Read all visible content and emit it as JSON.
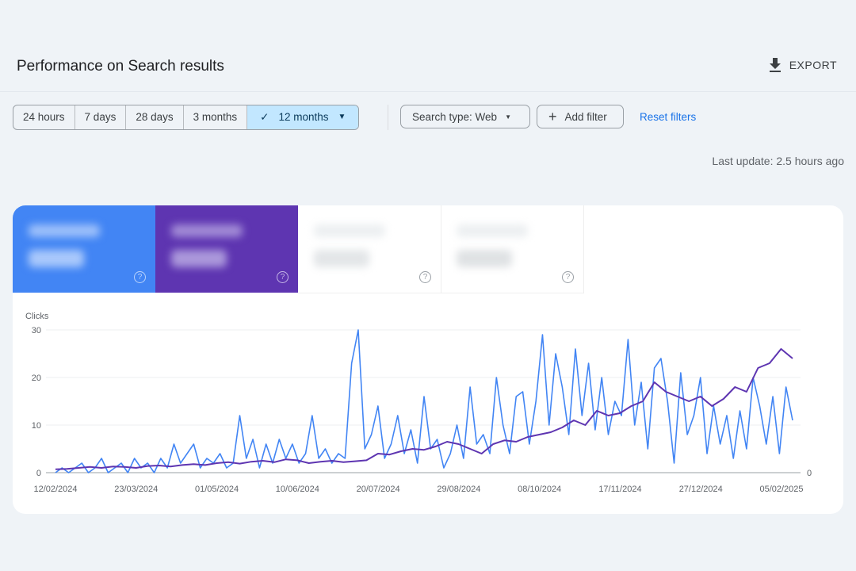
{
  "header": {
    "title": "Performance on Search results",
    "export_label": "EXPORT",
    "export_icon": "download-icon"
  },
  "date_range": {
    "options": [
      "24 hours",
      "7 days",
      "28 days",
      "3 months",
      "12 months"
    ],
    "selected": "12 months"
  },
  "filters": {
    "search_type": "Search type: Web",
    "add_filter": "Add filter",
    "reset": "Reset filters"
  },
  "last_update": "Last update: 2.5 hours ago",
  "metric_tiles": [
    {
      "color": "#4285f4",
      "blurred": true
    },
    {
      "color": "#5e35b1",
      "blurred": true
    },
    {
      "color": "#ffffff",
      "blurred": true
    },
    {
      "color": "#ffffff",
      "blurred": true
    }
  ],
  "chart_data": {
    "type": "line",
    "ylabel": "Clicks",
    "ylim": [
      0,
      30
    ],
    "yticks": [
      "0",
      "10",
      "20",
      "30"
    ],
    "y2ticks": [
      "0"
    ],
    "xlim": [
      "12/02/2024",
      "10/02/2025"
    ],
    "xticks": [
      "12/02/2024",
      "23/03/2024",
      "01/05/2024",
      "10/06/2024",
      "20/07/2024",
      "29/08/2024",
      "08/10/2024",
      "17/11/2024",
      "27/12/2024",
      "05/02/2025"
    ],
    "grid": true,
    "series": [
      {
        "color": "#4285f4",
        "axis": "left",
        "values": [
          0,
          1,
          0,
          1,
          2,
          0,
          1,
          3,
          0,
          1,
          2,
          0,
          3,
          1,
          2,
          0,
          3,
          1,
          6,
          2,
          4,
          6,
          1,
          3,
          2,
          4,
          1,
          2,
          12,
          3,
          7,
          1,
          6,
          2,
          7,
          3,
          6,
          2,
          4,
          12,
          3,
          5,
          2,
          4,
          3,
          23,
          30,
          5,
          8,
          14,
          3,
          6,
          12,
          4,
          9,
          2,
          16,
          5,
          7,
          1,
          4,
          10,
          3,
          18,
          6,
          8,
          4,
          20,
          10,
          4,
          16,
          17,
          6,
          15,
          29,
          10,
          25,
          18,
          8,
          26,
          12,
          23,
          9,
          20,
          8,
          15,
          12,
          28,
          10,
          19,
          5,
          22,
          24,
          15,
          2,
          21,
          8,
          12,
          20,
          4,
          14,
          6,
          12,
          3,
          13,
          5,
          20,
          14,
          6,
          16,
          4,
          18,
          11
        ]
      },
      {
        "color": "#5e35b1",
        "axis": "right",
        "values": [
          0.7,
          0.8,
          1,
          1.2,
          1,
          1.3,
          1.2,
          1,
          1.4,
          1.5,
          1.3,
          1.6,
          1.8,
          1.6,
          2,
          2.2,
          1.9,
          2.3,
          2.5,
          2.2,
          2.8,
          2.6,
          2,
          2.3,
          2.5,
          2.2,
          2.4,
          2.6,
          4,
          3.8,
          4.5,
          5,
          4.8,
          5.5,
          6.5,
          6,
          5,
          4,
          6,
          6.8,
          6.5,
          7.5,
          8,
          8.5,
          9.5,
          11,
          10,
          13,
          12,
          12.5,
          14,
          15,
          19,
          17,
          16,
          15,
          16,
          14,
          15.5,
          18,
          17,
          22,
          23,
          26,
          24
        ]
      }
    ]
  }
}
